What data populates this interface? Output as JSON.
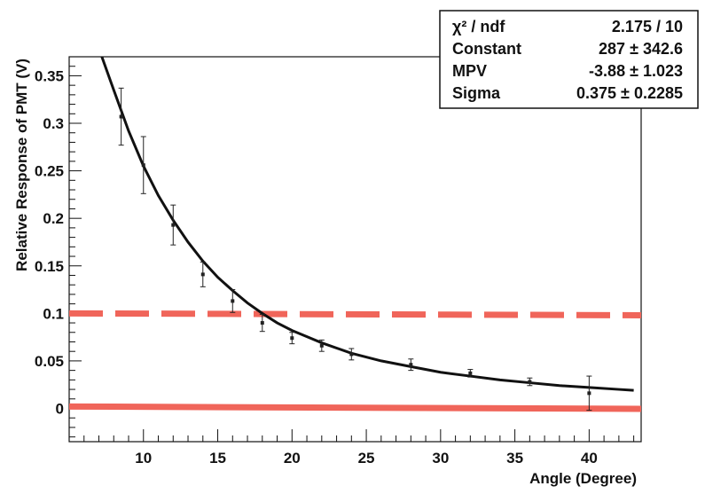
{
  "chart_data": {
    "type": "scatter",
    "title": "",
    "xlabel": "Angle (Degree)",
    "ylabel": "Relative Response of PMT (V)",
    "xlim": [
      5,
      43.5
    ],
    "ylim": [
      -0.035,
      0.37
    ],
    "x_ticks": [
      10,
      15,
      20,
      25,
      30,
      35,
      40
    ],
    "x_tick_labels": [
      "10",
      "15",
      "20",
      "25",
      "30",
      "35",
      "40"
    ],
    "y_ticks": [
      0,
      0.05,
      0.1,
      0.15,
      0.2,
      0.25,
      0.3,
      0.35
    ],
    "y_tick_labels": [
      "0",
      "0.05",
      "0.1",
      "0.15",
      "0.2",
      "0.25",
      "0.3",
      "0.35"
    ],
    "series": [
      {
        "name": "data",
        "x": [
          8.5,
          10,
          12,
          14,
          16,
          18,
          20,
          22,
          24,
          28,
          32,
          36,
          40
        ],
        "y": [
          0.307,
          0.256,
          0.193,
          0.141,
          0.113,
          0.09,
          0.074,
          0.066,
          0.057,
          0.046,
          0.037,
          0.028,
          0.016
        ],
        "yerr": [
          0.03,
          0.03,
          0.021,
          0.013,
          0.012,
          0.009,
          0.006,
          0.006,
          0.006,
          0.006,
          0.004,
          0.004,
          0.018
        ],
        "xerr": [
          0.1,
          0.1,
          0.1,
          0.1,
          0.1,
          0.1,
          0.1,
          0.1,
          0.1,
          0.1,
          0.1,
          0.1,
          0.1
        ]
      }
    ],
    "fit": {
      "name": "Landau fit",
      "x": [
        7.2,
        8,
        9,
        10,
        11,
        12,
        13,
        14,
        15,
        16,
        17,
        18,
        19,
        20,
        22,
        24,
        26,
        28,
        30,
        32,
        34,
        36,
        38,
        40,
        42,
        43
      ],
      "y": [
        0.37,
        0.335,
        0.292,
        0.255,
        0.224,
        0.198,
        0.175,
        0.155,
        0.138,
        0.124,
        0.111,
        0.1,
        0.09,
        0.082,
        0.069,
        0.058,
        0.05,
        0.044,
        0.038,
        0.034,
        0.03,
        0.027,
        0.024,
        0.022,
        0.02,
        0.019
      ]
    },
    "reference_lines": [
      {
        "name": "threshold-dashed-line",
        "style": "dashed",
        "color": "#f0655a",
        "y": [
          0.1,
          0.098
        ]
      },
      {
        "name": "baseline-solid-line",
        "style": "solid",
        "color": "#f0655a",
        "y": [
          0.002,
          -0.0005
        ]
      }
    ],
    "colors": {
      "data": "#222222",
      "fit": "#111111",
      "reference": "#f0655a"
    }
  },
  "stats_box": {
    "rows": [
      {
        "label": "χ² / ndf",
        "value": "2.175 / 10"
      },
      {
        "label": "Constant",
        "value": "287 ± 342.6"
      },
      {
        "label": "MPV",
        "value": "-3.88 ± 1.023"
      },
      {
        "label": "Sigma",
        "value": "0.375 ± 0.2285"
      }
    ]
  }
}
